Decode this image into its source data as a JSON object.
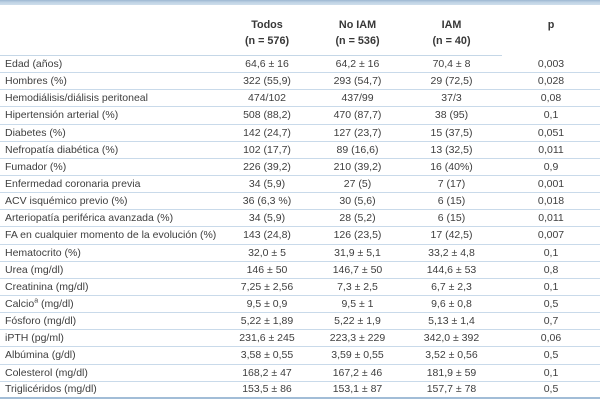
{
  "table": {
    "header": {
      "label_col": "",
      "todos": "Todos",
      "todos_n": "(n = 576)",
      "no_iam": "No IAM",
      "no_iam_n": "(n = 536)",
      "iam": "IAM",
      "iam_n": "(n = 40)",
      "p": "p"
    },
    "rows": [
      {
        "label": "Edad (años)",
        "values": [
          "64,6 ± 16",
          "64,2 ± 16",
          "70,4 ± 8",
          "0,003"
        ]
      },
      {
        "label": "Hombres (%)",
        "values": [
          "322 (55,9)",
          "293 (54,7)",
          "29 (72,5)",
          "0,028"
        ]
      },
      {
        "label": "Hemodiálisis/diálisis peritoneal",
        "values": [
          "474/102",
          "437/99",
          "37/3",
          "0,08"
        ]
      },
      {
        "label": "Hipertensión arterial (%)",
        "values": [
          "508 (88,2)",
          "470 (87,7)",
          "38 (95)",
          "0,1"
        ]
      },
      {
        "label": "Diabetes (%)",
        "values": [
          "142 (24,7)",
          "127 (23,7)",
          "15 (37,5)",
          "0,051"
        ]
      },
      {
        "label": "Nefropatía diabética (%)",
        "values": [
          "102 (17,7)",
          "89 (16,6)",
          "13 (32,5)",
          "0,011"
        ]
      },
      {
        "label": "Fumador (%)",
        "values": [
          "226 (39,2)",
          "210 (39,2)",
          "16 (40%)",
          "0,9"
        ]
      },
      {
        "label": "Enfermedad coronaria previa",
        "values": [
          "34 (5,9)",
          "27 (5)",
          "7 (17)",
          "0,001"
        ]
      },
      {
        "label": "ACV isquémico previo (%)",
        "values": [
          "36 (6,3 %)",
          "30 (5,6)",
          "6 (15)",
          "0,018"
        ]
      },
      {
        "label": "Arteriopatía periférica avanzada (%)",
        "values": [
          "34 (5,9)",
          "28 (5,2)",
          "6 (15)",
          "0,011"
        ]
      },
      {
        "label": "FA en cualquier momento de la evolución (%)",
        "values": [
          "143 (24,8)",
          "126 (23,5)",
          "17 (42,5)",
          "0,007"
        ]
      },
      {
        "label": "Hematocrito (%)",
        "values": [
          "32,0 ± 5",
          "31,9 ± 5,1",
          "33,2 ± 4,8",
          "0,1"
        ]
      },
      {
        "label": "Urea (mg/dl)",
        "values": [
          "146 ± 50",
          "146,7 ± 50",
          "144,6 ± 53",
          "0,8"
        ]
      },
      {
        "label": "Creatinina (mg/dl)",
        "values": [
          "7,25 ± 2,56",
          "7,3 ± 2,5",
          "6,7 ± 2,3",
          "0,1"
        ]
      },
      {
        "label": "Calcio",
        "sup": "a",
        "label_suffix": " (mg/dl)",
        "values": [
          "9,5 ± 0,9",
          "9,5 ± 1",
          "9,6 ± 0,8",
          "0,5"
        ]
      },
      {
        "label": "Fósforo (mg/dl)",
        "values": [
          "5,22 ± 1,89",
          "5,22 ± 1,9",
          "5,13 ± 1,4",
          "0,7"
        ]
      },
      {
        "label": "iPTH (pg/ml)",
        "values": [
          "231,6 ± 245",
          "223,3 ± 229",
          "342,0 ± 392",
          "0,06"
        ]
      },
      {
        "label": "Albúmina (g/dl)",
        "values": [
          "3,58 ± 0,55",
          "3,59 ± 0,55",
          "3,52 ± 0,56",
          "0,5"
        ]
      },
      {
        "label": "Colesterol (mg/dl)",
        "values": [
          "168,2 ± 47",
          "167,2 ± 46",
          "181,9 ± 59",
          "0,1"
        ]
      },
      {
        "label": "Triglicéridos (mg/dl)",
        "values": [
          "153,5 ± 86",
          "153,1 ± 87",
          "157,7 ± 78",
          "0,5"
        ]
      }
    ],
    "colors": {
      "rule_light_blue": "#c9daea",
      "rule_bottom_blue": "#a2bdd7",
      "top_band_blue": "#bed2e4",
      "text": "#3e3e3e"
    }
  }
}
